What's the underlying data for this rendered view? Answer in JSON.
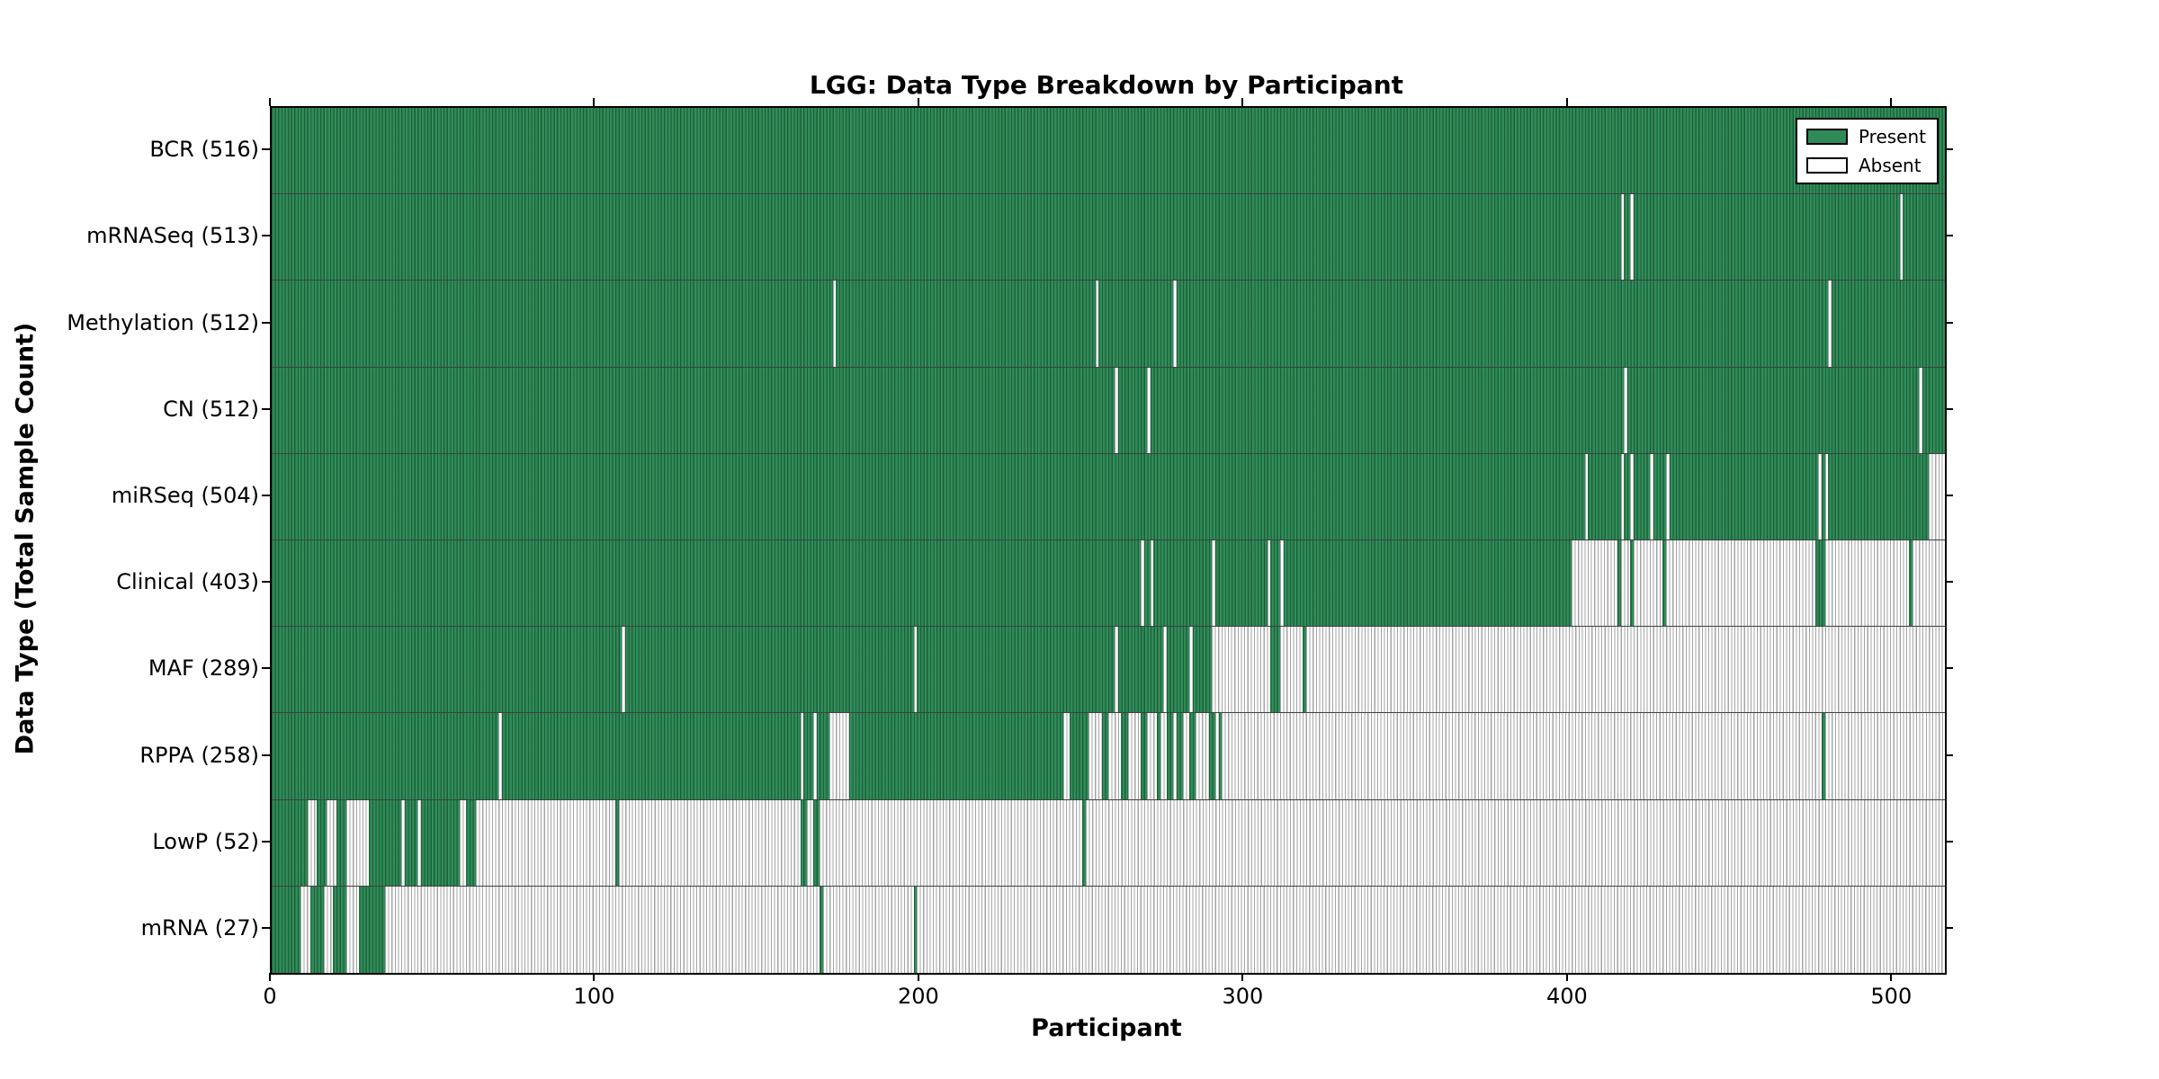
{
  "chart_data": {
    "type": "heatmap",
    "title": "LGG: Data Type Breakdown by Participant",
    "xlabel": "Participant",
    "ylabel": "Data Type (Total Sample Count)",
    "xlim": [
      0,
      516
    ],
    "x_ticks": [
      0,
      100,
      200,
      300,
      400,
      500
    ],
    "grid": false,
    "legend_position": "upper right",
    "legend": [
      {
        "label": "Present",
        "color": "#2e8b57"
      },
      {
        "label": "Absent",
        "color": "#ffffff"
      }
    ],
    "rows": [
      {
        "label": "BCR (516)",
        "data_type": "BCR",
        "total_samples": 516,
        "absent_ranges": []
      },
      {
        "label": "mRNASeq (513)",
        "data_type": "mRNASeq",
        "total_samples": 513,
        "absent_ranges": [
          [
            416,
            417
          ],
          [
            419,
            420
          ],
          [
            502,
            503
          ]
        ]
      },
      {
        "label": "Methylation (512)",
        "data_type": "Methylation",
        "total_samples": 512,
        "absent_ranges": [
          [
            173,
            174
          ],
          [
            254,
            255
          ],
          [
            278,
            279
          ],
          [
            480,
            481
          ]
        ]
      },
      {
        "label": "CN (512)",
        "data_type": "CN",
        "total_samples": 512,
        "absent_ranges": [
          [
            260,
            261
          ],
          [
            270,
            271
          ],
          [
            417,
            418
          ],
          [
            508,
            509
          ]
        ]
      },
      {
        "label": "miRSeq (504)",
        "data_type": "miRSeq",
        "total_samples": 504,
        "absent_ranges": [
          [
            405,
            406
          ],
          [
            416,
            417
          ],
          [
            419,
            420
          ],
          [
            425,
            426
          ],
          [
            430,
            431
          ],
          [
            477,
            478
          ],
          [
            479,
            480
          ],
          [
            511,
            516
          ]
        ]
      },
      {
        "label": "Clinical (403)",
        "data_type": "Clinical",
        "total_samples": 403,
        "absent_ranges": [
          [
            268,
            269
          ],
          [
            271,
            272
          ],
          [
            290,
            291
          ],
          [
            307,
            308
          ],
          [
            311,
            312
          ],
          [
            401,
            415
          ],
          [
            416,
            419
          ],
          [
            420,
            429
          ],
          [
            430,
            476
          ],
          [
            479,
            505
          ],
          [
            506,
            516
          ]
        ]
      },
      {
        "label": "MAF (289)",
        "data_type": "MAF",
        "total_samples": 289,
        "absent_ranges": [
          [
            108,
            109
          ],
          [
            198,
            199
          ],
          [
            260,
            261
          ],
          [
            275,
            276
          ],
          [
            283,
            284
          ],
          [
            290,
            308
          ],
          [
            311,
            318
          ],
          [
            319,
            516
          ]
        ]
      },
      {
        "label": "RPPA (258)",
        "data_type": "RPPA",
        "total_samples": 258,
        "absent_ranges": [
          [
            70,
            71
          ],
          [
            163,
            164
          ],
          [
            167,
            168
          ],
          [
            172,
            178
          ],
          [
            244,
            246
          ],
          [
            252,
            256
          ],
          [
            258,
            262
          ],
          [
            264,
            268
          ],
          [
            270,
            273
          ],
          [
            274,
            276
          ],
          [
            278,
            279
          ],
          [
            281,
            283
          ],
          [
            285,
            289
          ],
          [
            291,
            292
          ],
          [
            293,
            478
          ],
          [
            479,
            516
          ]
        ]
      },
      {
        "label": "LowP (52)",
        "data_type": "LowP",
        "total_samples": 52,
        "absent_ranges": [
          [
            11,
            14
          ],
          [
            17,
            20
          ],
          [
            23,
            30
          ],
          [
            40,
            41
          ],
          [
            45,
            46
          ],
          [
            58,
            60
          ],
          [
            63,
            106
          ],
          [
            107,
            163
          ],
          [
            165,
            167
          ],
          [
            169,
            250
          ],
          [
            251,
            516
          ]
        ]
      },
      {
        "label": "mRNA (27)",
        "data_type": "mRNA",
        "total_samples": 27,
        "absent_ranges": [
          [
            9,
            12
          ],
          [
            16,
            19
          ],
          [
            23,
            27
          ],
          [
            35,
            169
          ],
          [
            170,
            198
          ],
          [
            199,
            516
          ]
        ]
      }
    ]
  }
}
